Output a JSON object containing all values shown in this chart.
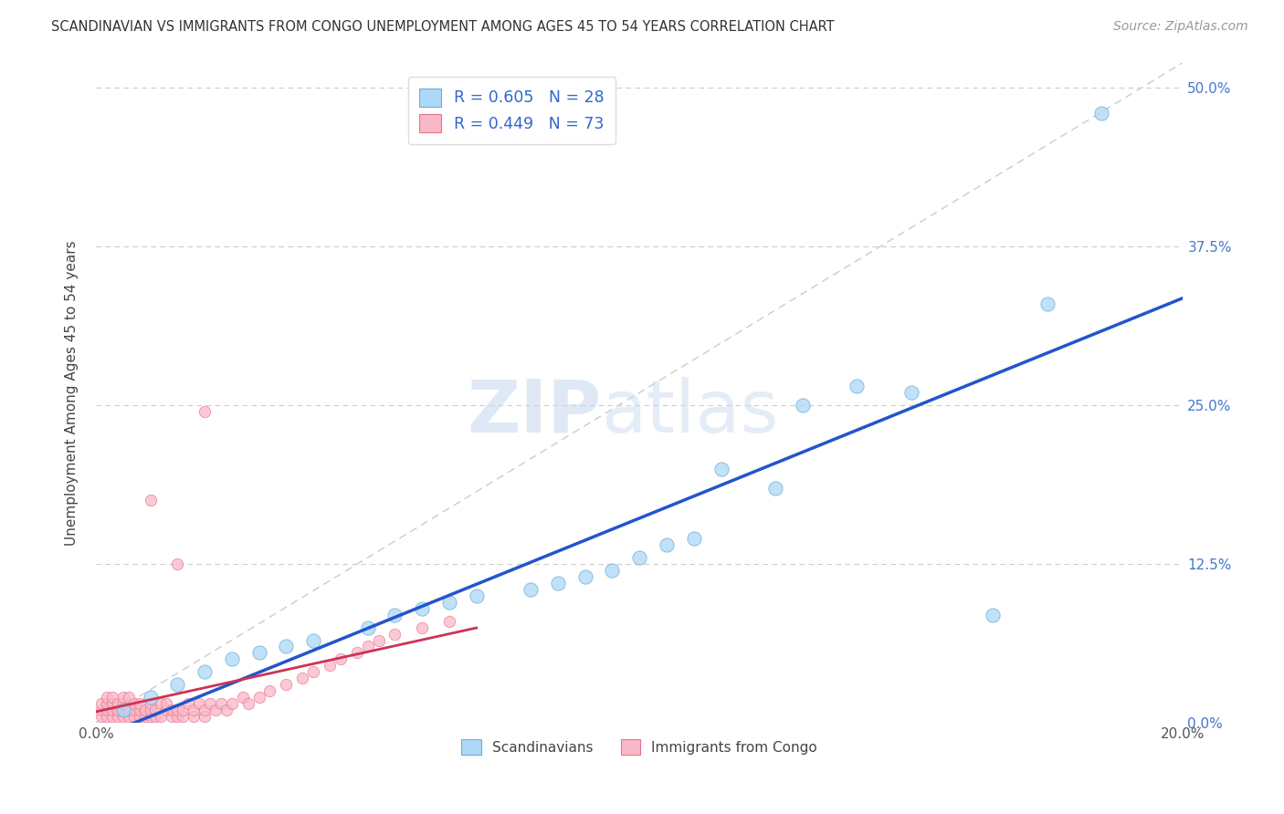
{
  "title": "SCANDINAVIAN VS IMMIGRANTS FROM CONGO UNEMPLOYMENT AMONG AGES 45 TO 54 YEARS CORRELATION CHART",
  "source": "Source: ZipAtlas.com",
  "ylabel": "Unemployment Among Ages 45 to 54 years",
  "xlim": [
    0.0,
    0.2
  ],
  "ylim": [
    0.0,
    0.52
  ],
  "yticks": [
    0.0,
    0.125,
    0.25,
    0.375,
    0.5
  ],
  "ytick_labels_right": [
    "0.0%",
    "12.5%",
    "25.0%",
    "37.5%",
    "50.0%"
  ],
  "xticks": [
    0.0,
    0.02,
    0.04,
    0.06,
    0.08,
    0.1,
    0.12,
    0.14,
    0.16,
    0.18,
    0.2
  ],
  "xtick_labels": [
    "0.0%",
    "",
    "",
    "",
    "",
    "",
    "",
    "",
    "",
    "",
    "20.0%"
  ],
  "scandinavian_color": "#add8f7",
  "scandinavian_edge": "#6aaed6",
  "congo_color": "#f9b8c8",
  "congo_edge": "#e8728a",
  "scandinavian_line_color": "#2255cc",
  "congo_line_color": "#cc3355",
  "diagonal_color": "#cccccc",
  "R_scandinavian": 0.605,
  "N_scandinavian": 28,
  "R_congo": 0.449,
  "N_congo": 73,
  "scan_x": [
    0.005,
    0.01,
    0.015,
    0.02,
    0.025,
    0.03,
    0.035,
    0.04,
    0.05,
    0.055,
    0.06,
    0.065,
    0.07,
    0.08,
    0.085,
    0.09,
    0.095,
    0.1,
    0.105,
    0.11,
    0.115,
    0.125,
    0.13,
    0.14,
    0.15,
    0.165,
    0.175,
    0.185
  ],
  "scan_y": [
    0.01,
    0.02,
    0.03,
    0.04,
    0.05,
    0.055,
    0.06,
    0.065,
    0.075,
    0.085,
    0.09,
    0.095,
    0.1,
    0.105,
    0.11,
    0.115,
    0.12,
    0.13,
    0.14,
    0.145,
    0.2,
    0.185,
    0.25,
    0.265,
    0.26,
    0.085,
    0.33,
    0.48
  ],
  "congo_x": [
    0.001,
    0.001,
    0.001,
    0.002,
    0.002,
    0.002,
    0.002,
    0.003,
    0.003,
    0.003,
    0.003,
    0.004,
    0.004,
    0.004,
    0.005,
    0.005,
    0.005,
    0.005,
    0.006,
    0.006,
    0.006,
    0.007,
    0.007,
    0.007,
    0.008,
    0.008,
    0.008,
    0.009,
    0.009,
    0.01,
    0.01,
    0.01,
    0.011,
    0.011,
    0.012,
    0.012,
    0.013,
    0.013,
    0.014,
    0.014,
    0.015,
    0.015,
    0.016,
    0.016,
    0.017,
    0.018,
    0.018,
    0.019,
    0.02,
    0.02,
    0.021,
    0.022,
    0.023,
    0.024,
    0.025,
    0.027,
    0.028,
    0.03,
    0.032,
    0.035,
    0.038,
    0.04,
    0.043,
    0.045,
    0.048,
    0.05,
    0.052,
    0.055,
    0.06,
    0.065,
    0.01,
    0.015,
    0.02
  ],
  "congo_y": [
    0.005,
    0.01,
    0.015,
    0.005,
    0.01,
    0.015,
    0.02,
    0.005,
    0.01,
    0.015,
    0.02,
    0.005,
    0.01,
    0.015,
    0.005,
    0.01,
    0.015,
    0.02,
    0.005,
    0.01,
    0.02,
    0.005,
    0.01,
    0.015,
    0.005,
    0.01,
    0.015,
    0.005,
    0.01,
    0.005,
    0.01,
    0.015,
    0.005,
    0.01,
    0.005,
    0.015,
    0.01,
    0.015,
    0.005,
    0.01,
    0.005,
    0.01,
    0.005,
    0.01,
    0.015,
    0.005,
    0.01,
    0.015,
    0.005,
    0.01,
    0.015,
    0.01,
    0.015,
    0.01,
    0.015,
    0.02,
    0.015,
    0.02,
    0.025,
    0.03,
    0.035,
    0.04,
    0.045,
    0.05,
    0.055,
    0.06,
    0.065,
    0.07,
    0.075,
    0.08,
    0.175,
    0.125,
    0.245
  ],
  "watermark_zip": "ZIP",
  "watermark_atlas": "atlas",
  "legend_label_blue": "Scandinavians",
  "legend_label_pink": "Immigrants from Congo"
}
